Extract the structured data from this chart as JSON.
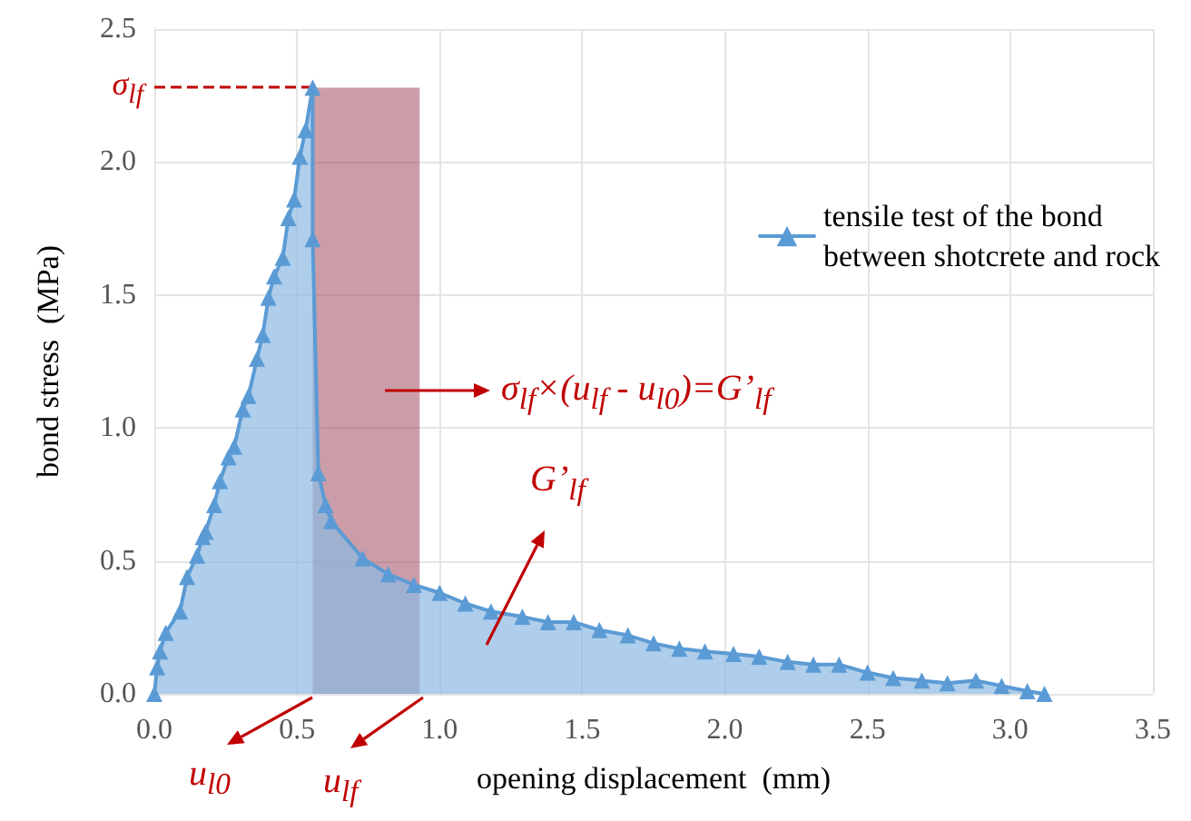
{
  "chart_data": {
    "type": "area",
    "xlabel": "opening displacement  (mm)",
    "ylabel": "bond stress  (MPa)",
    "series": [
      {
        "name": "tensile test of the bond\nbetween shotcrete and rock",
        "color": "#5b9bd5",
        "marker": "triangle",
        "x": [
          0,
          0.01,
          0.02,
          0.04,
          0.09,
          0.115,
          0.15,
          0.17,
          0.18,
          0.21,
          0.23,
          0.26,
          0.28,
          0.31,
          0.33,
          0.36,
          0.38,
          0.4,
          0.42,
          0.45,
          0.47,
          0.49,
          0.51,
          0.53,
          0.555,
          0.555,
          0.575,
          0.6,
          0.62,
          0.73,
          0.82,
          0.91,
          1.0,
          1.09,
          1.18,
          1.29,
          1.38,
          1.47,
          1.56,
          1.66,
          1.75,
          1.84,
          1.93,
          2.03,
          2.12,
          2.22,
          2.31,
          2.4,
          2.5,
          2.59,
          2.69,
          2.78,
          2.88,
          2.97,
          3.06,
          3.12
        ],
        "values": [
          0,
          0.1,
          0.16,
          0.23,
          0.31,
          0.44,
          0.52,
          0.59,
          0.61,
          0.71,
          0.8,
          0.89,
          0.93,
          1.07,
          1.12,
          1.26,
          1.35,
          1.49,
          1.57,
          1.64,
          1.79,
          1.86,
          2.02,
          2.12,
          2.28,
          1.71,
          0.83,
          0.71,
          0.65,
          0.51,
          0.45,
          0.41,
          0.38,
          0.34,
          0.31,
          0.29,
          0.27,
          0.27,
          0.24,
          0.22,
          0.19,
          0.17,
          0.16,
          0.15,
          0.14,
          0.12,
          0.11,
          0.11,
          0.08,
          0.06,
          0.05,
          0.04,
          0.05,
          0.03,
          0.01,
          0
        ]
      },
      {
        "color": "#a04c60",
        "marker": "none",
        "x": [
          0.555,
          0.93
        ],
        "values": [
          2.28,
          2.28
        ]
      }
    ],
    "xlim": [
      0,
      3.5
    ],
    "xticks": [
      {
        "value": 0,
        "label": "0.0"
      },
      {
        "value": 0.5,
        "label": "0.5"
      },
      {
        "value": 1,
        "label": "1.0"
      },
      {
        "value": 1.5,
        "label": "1.5"
      },
      {
        "value": 2,
        "label": "2.0"
      },
      {
        "value": 2.5,
        "label": "2.5"
      },
      {
        "value": 3,
        "label": "3.0"
      },
      {
        "value": 3.5,
        "label": "3.5"
      }
    ],
    "ylim": [
      0,
      2.5
    ],
    "yticks": [
      {
        "value": 0,
        "label": "0.0"
      },
      {
        "value": 0.5,
        "label": "0.5"
      },
      {
        "value": 1,
        "label": "1.0"
      },
      {
        "value": 1.5,
        "label": "1.5"
      },
      {
        "value": 2,
        "label": "2.0"
      },
      {
        "value": 2.5,
        "label": "2.5"
      }
    ],
    "ref_lines": [
      {
        "axis": "y",
        "value": 2.28,
        "label": "σ$_{lf}$",
        "color": "#c00000",
        "line_style": "dashed"
      }
    ],
    "annotations": [
      "σ$_{lf}$×(u$_{lf}$ - u$_{l0}$)=G’$_{lf}$",
      "G’$_{lf}$",
      "u$_{l0}$",
      "u$_{lf}$"
    ],
    "grid": true,
    "legend": "top right"
  }
}
